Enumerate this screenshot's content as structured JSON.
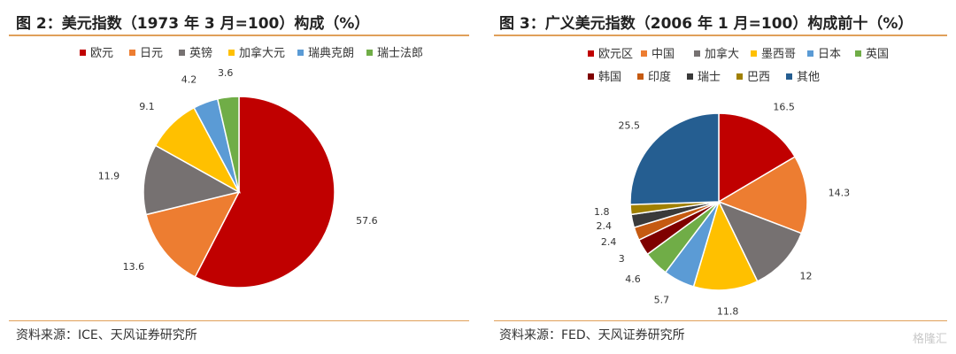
{
  "chart_data": [
    {
      "type": "pie",
      "title": "图 2：美元指数（1973 年 3 月=100）构成（%）",
      "source": "资料来源：ICE、天风证券研究所",
      "categories": [
        "欧元",
        "日元",
        "英镑",
        "加拿大元",
        "瑞典克朗",
        "瑞士法郎"
      ],
      "values": [
        57.6,
        13.6,
        11.9,
        9.1,
        4.2,
        3.6
      ],
      "colors": [
        "#c00000",
        "#ed7d31",
        "#767171",
        "#ffc000",
        "#5b9bd5",
        "#70ad47"
      ],
      "legend": "top"
    },
    {
      "type": "pie",
      "title": "图 3：广义美元指数（2006 年 1 月=100）构成前十（%）",
      "source": "资料来源：FED、天风证券研究所",
      "categories": [
        "欧元区",
        "中国",
        "加拿大",
        "墨西哥",
        "日本",
        "英国",
        "韩国",
        "印度",
        "瑞士",
        "巴西",
        "其他"
      ],
      "values": [
        16.5,
        14.3,
        12,
        11.8,
        5.7,
        4.6,
        3,
        2.4,
        2.4,
        1.8,
        25.5
      ],
      "colors": [
        "#c00000",
        "#ed7d31",
        "#767171",
        "#ffc000",
        "#5b9bd5",
        "#70ad47",
        "#7f0000",
        "#c55a11",
        "#3a3a3a",
        "#a08000",
        "#255e91"
      ],
      "legend": "top"
    }
  ],
  "watermark": "格隆汇"
}
